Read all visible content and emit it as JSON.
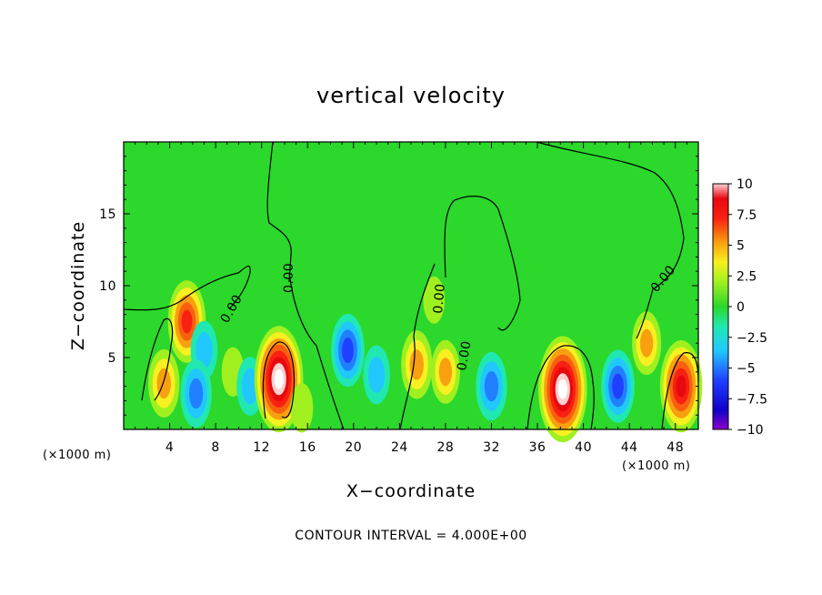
{
  "chart_data": {
    "type": "heatmap",
    "title": "vertical velocity",
    "xlabel": "X−coordinate",
    "ylabel": "Z−coordinate",
    "x_unit": "(×1000 m)",
    "x_ticks": [
      "4",
      "8",
      "12",
      "16",
      "20",
      "24",
      "28",
      "32",
      "36",
      "40",
      "44",
      "48"
    ],
    "x_tick_values": [
      4,
      8,
      12,
      16,
      20,
      24,
      28,
      32,
      36,
      40,
      44,
      48
    ],
    "y_ticks": [
      "5",
      "10",
      "15"
    ],
    "y_tick_values": [
      5,
      10,
      15
    ],
    "xlim": [
      0,
      50
    ],
    "ylim": [
      0,
      20
    ],
    "contour_label": "0.00",
    "contour_note": "CONTOUR INTERVAL = 4.000E+00",
    "colorbar": {
      "tick_labels": [
        "10",
        "7.5",
        "5",
        "2.5",
        "0",
        "−2.5",
        "−5",
        "−7.5",
        "−10"
      ],
      "tick_values": [
        10,
        7.5,
        5,
        2.5,
        0,
        -2.5,
        -5,
        -7.5,
        -10
      ],
      "range": [
        -10,
        10
      ]
    },
    "features": [
      {
        "x": 5.5,
        "z": 7.5,
        "w": 9
      },
      {
        "x": 3.5,
        "z": 3.2,
        "w": 6
      },
      {
        "x": 7,
        "z": 5.5,
        "w": -4
      },
      {
        "x": 6.3,
        "z": 2.5,
        "w": -6
      },
      {
        "x": 9.5,
        "z": 4,
        "w": 2
      },
      {
        "x": 11,
        "z": 3,
        "w": -4
      },
      {
        "x": 13.5,
        "z": 3.5,
        "w": 14
      },
      {
        "x": 19.5,
        "z": 5.5,
        "w": -7
      },
      {
        "x": 22,
        "z": 3.8,
        "w": -4
      },
      {
        "x": 25.5,
        "z": 4.5,
        "w": 6
      },
      {
        "x": 28,
        "z": 4,
        "w": 5
      },
      {
        "x": 27,
        "z": 9,
        "w": 1.5
      },
      {
        "x": 32,
        "z": 3,
        "w": -6
      },
      {
        "x": 38.2,
        "z": 2.8,
        "w": 14
      },
      {
        "x": 43,
        "z": 3,
        "w": -7
      },
      {
        "x": 45.5,
        "z": 6,
        "w": 5
      },
      {
        "x": 48.5,
        "z": 3,
        "w": 11
      },
      {
        "x": 15.5,
        "z": 1.5,
        "w": 2
      }
    ]
  }
}
